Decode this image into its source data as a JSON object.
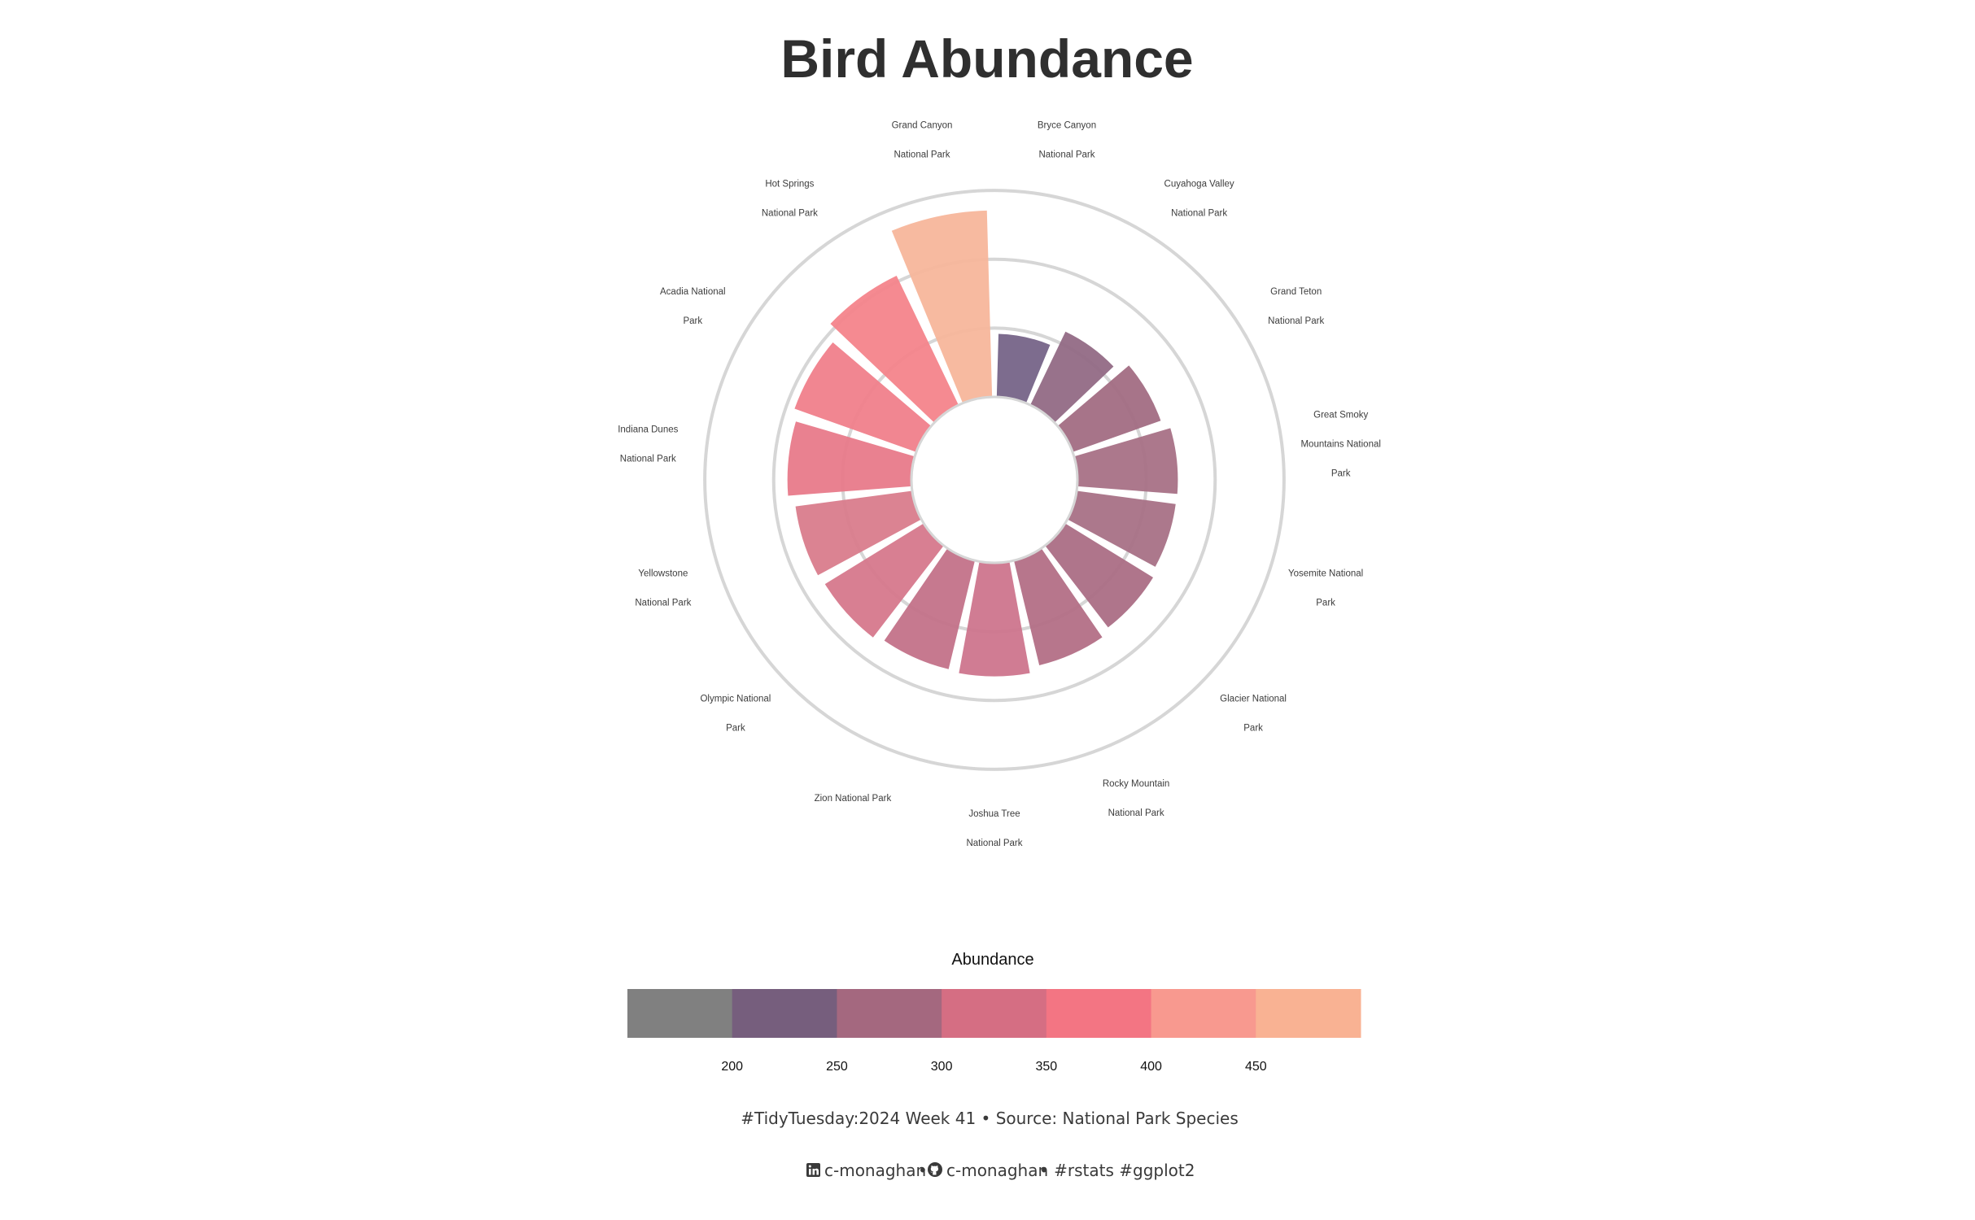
{
  "chart_data": {
    "type": "bar",
    "coord": "polar",
    "title": "Bird Abundance",
    "categories": [
      "Bryce Canyon National Park",
      "Cuyahoga Valley National Park",
      "Grand Teton National Park",
      "Great Smoky Mountains National Park",
      "Yosemite National Park",
      "Glacier National Park",
      "Rocky Mountain National Park",
      "Joshua Tree National Park",
      "Zion National Park",
      "Olympic National Park",
      "Yellowstone National Park",
      "Indiana Dunes National Park",
      "Acadia National Park",
      "Hot Springs National Park",
      "Grand Canyon National Park"
    ],
    "category_labels": [
      [
        "Bryce Canyon",
        "National Park"
      ],
      [
        "Cuyahoga Valley",
        "National Park"
      ],
      [
        "Grand Teton",
        "National Park"
      ],
      [
        "Great Smoky",
        "Mountains National",
        "Park"
      ],
      [
        "Yosemite National",
        "Park"
      ],
      [
        "Glacier National",
        "Park"
      ],
      [
        "Rocky Mountain",
        "National Park"
      ],
      [
        "Joshua Tree",
        "National Park"
      ],
      [
        "Zion National Park"
      ],
      [
        "Olympic National",
        "Park"
      ],
      [
        "Yellowstone",
        "National Park"
      ],
      [
        "Indiana Dunes",
        "National Park"
      ],
      [
        "Acadia National",
        "Park"
      ],
      [
        "Hot Springs",
        "National Park"
      ],
      [
        "Grand Canyon",
        "National Park"
      ]
    ],
    "values": [
      230,
      262,
      283,
      295,
      294,
      300,
      308,
      318,
      315,
      322,
      325,
      336,
      345,
      370,
      445
    ],
    "colors": [
      "#766488",
      "#926a85",
      "#a26d83",
      "#a87186",
      "#a87186",
      "#ab6e85",
      "#b36f86",
      "#cd758d",
      "#c37289",
      "#d6788c",
      "#d97c8c",
      "#e87a8a",
      "#f07f8b",
      "#f4848b",
      "#f7b69b"
    ],
    "bar_opacity": 0.95,
    "ylim": [
      0,
      500
    ],
    "inner_hole_value": 120,
    "gridlines": [
      240,
      360,
      480
    ],
    "legend": {
      "title": "Abundance",
      "position": "bottom",
      "bins": [
        {
          "from": 150,
          "to": 200,
          "color": "#808080"
        },
        {
          "from": 200,
          "to": 250,
          "color": "#765e7d"
        },
        {
          "from": 250,
          "to": 300,
          "color": "#a4687f"
        },
        {
          "from": 300,
          "to": 350,
          "color": "#d56e83"
        },
        {
          "from": 350,
          "to": 400,
          "color": "#f37583"
        },
        {
          "from": 400,
          "to": 450,
          "color": "#f8998f"
        },
        {
          "from": 450,
          "to": 500,
          "color": "#f9b293"
        }
      ],
      "ticks": [
        "200",
        "250",
        "300",
        "350",
        "400",
        "450"
      ]
    }
  },
  "caption": {
    "line1": "#TidyTuesday:2024 Week 41 • Source: National Park Species",
    "linkedin_handle": "c-monaghan",
    "separator": "•",
    "github_handle": "c-monaghan",
    "tags": "• #rstats #ggplot2",
    "icons": [
      "linkedin-icon",
      "github-icon"
    ]
  }
}
